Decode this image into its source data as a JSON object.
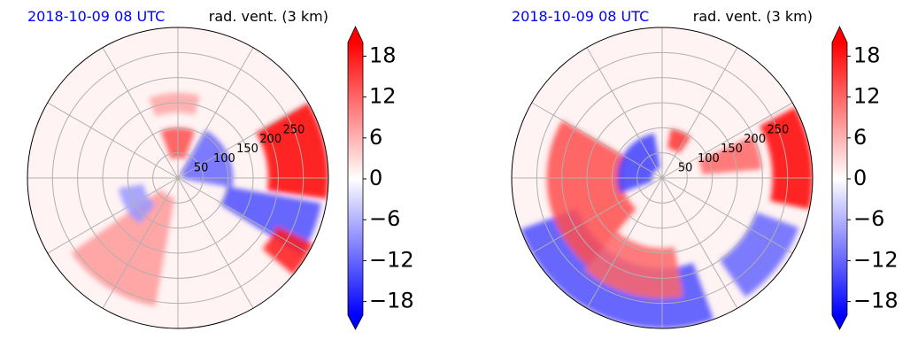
{
  "chart_data": [
    {
      "type": "polar-contourf",
      "title_left": "2018-10-09 08 UTC",
      "title_right": "rad. vent. (3 km)",
      "radial_ticks": [
        "50",
        "100",
        "150",
        "200",
        "250"
      ],
      "radial_values": [
        50,
        100,
        150,
        200,
        250
      ],
      "rmax": 300,
      "angular_gridlines_deg": [
        0,
        30,
        60,
        90,
        120,
        150,
        180,
        210,
        240,
        270,
        300,
        330
      ],
      "grid": true,
      "colorbar": {
        "cmap": "bwr",
        "range": [
          -20,
          20
        ],
        "ticks": [
          "18",
          "12",
          "6",
          "0",
          "−6",
          "−12",
          "−18"
        ],
        "tick_values": [
          18,
          12,
          6,
          0,
          -6,
          -12,
          -18
        ],
        "extend": "both"
      },
      "features": [
        {
          "sign": "positive",
          "value": 20,
          "r0": 180,
          "r1": 300,
          "a0": -8,
          "a1": 30
        },
        {
          "sign": "negative",
          "value": -14,
          "r0": 100,
          "r1": 290,
          "a0": -32,
          "a1": -10
        },
        {
          "sign": "positive",
          "value": 18,
          "r0": 220,
          "r1": 300,
          "a0": -40,
          "a1": -26
        },
        {
          "sign": "positive",
          "value": 8,
          "r0": 40,
          "r1": 260,
          "a0": 215,
          "a1": 260
        },
        {
          "sign": "negative",
          "value": -12,
          "r0": 10,
          "r1": 110,
          "a0": -10,
          "a1": 60
        },
        {
          "sign": "positive",
          "value": 14,
          "r0": 40,
          "r1": 100,
          "a0": 70,
          "a1": 110
        },
        {
          "sign": "positive",
          "value": 7,
          "r0": 130,
          "r1": 170,
          "a0": 75,
          "a1": 110
        },
        {
          "sign": "negative",
          "value": -8,
          "r0": 70,
          "r1": 120,
          "a0": 190,
          "a1": 230
        }
      ]
    },
    {
      "type": "polar-contourf",
      "title_left": "2018-10-09 08 UTC",
      "title_right": "rad. vent. (3 km)",
      "radial_ticks": [
        "50",
        "100",
        "150",
        "200",
        "250"
      ],
      "radial_values": [
        50,
        100,
        150,
        200,
        250
      ],
      "rmax": 300,
      "angular_gridlines_deg": [
        0,
        30,
        60,
        90,
        120,
        150,
        180,
        210,
        240,
        270,
        300,
        330
      ],
      "grid": true,
      "colorbar": {
        "cmap": "bwr",
        "range": [
          -20,
          20
        ],
        "ticks": [
          "18",
          "12",
          "6",
          "0",
          "−6",
          "−12",
          "−18"
        ],
        "tick_values": [
          18,
          12,
          6,
          0,
          -6,
          -12,
          -18
        ],
        "extend": "both"
      },
      "features": [
        {
          "sign": "positive",
          "value": 20,
          "r0": 220,
          "r1": 300,
          "a0": -12,
          "a1": 28
        },
        {
          "sign": "negative",
          "value": -14,
          "r0": 180,
          "r1": 300,
          "a0": 200,
          "a1": 290
        },
        {
          "sign": "positive",
          "value": 14,
          "r0": 80,
          "r1": 230,
          "a0": 150,
          "a1": 230
        },
        {
          "sign": "negative",
          "value": -15,
          "r0": 20,
          "r1": 90,
          "a0": 100,
          "a1": 200
        },
        {
          "sign": "positive",
          "value": 16,
          "r0": 60,
          "r1": 100,
          "a0": 55,
          "a1": 80
        },
        {
          "sign": "negative",
          "value": -12,
          "r0": 200,
          "r1": 290,
          "a0": -55,
          "a1": -20
        },
        {
          "sign": "positive",
          "value": 12,
          "r0": 80,
          "r1": 200,
          "a0": 5,
          "a1": 25
        },
        {
          "sign": "positive",
          "value": 12,
          "r0": 140,
          "r1": 240,
          "a0": 230,
          "a1": 280
        }
      ]
    }
  ]
}
